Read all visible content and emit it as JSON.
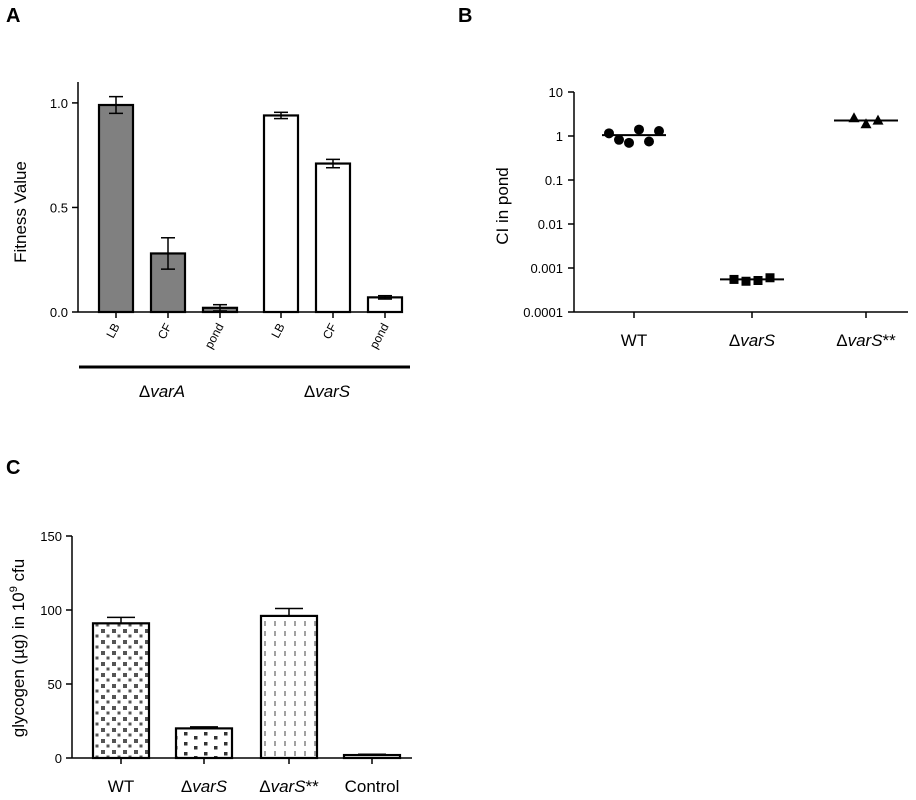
{
  "chart_data": [
    {
      "panel": "A",
      "type": "bar",
      "ylabel": "Fitness Value",
      "ylim": [
        0,
        1.1
      ],
      "yticks": [
        0.0,
        0.5,
        1.0
      ],
      "ytick_labels": [
        "0.0",
        "0.5",
        "1.0"
      ],
      "groups": [
        {
          "label_prefix": "Δ",
          "label_italic": "varA",
          "fill": "#808080",
          "categories": [
            "LB",
            "CF",
            "pond"
          ],
          "values": [
            0.99,
            0.28,
            0.02
          ],
          "errors": [
            0.04,
            0.075,
            0.015
          ]
        },
        {
          "label_prefix": "Δ",
          "label_italic": "varS",
          "fill": "#ffffff",
          "categories": [
            "LB",
            "CF",
            "pond"
          ],
          "values": [
            0.94,
            0.71,
            0.07
          ],
          "errors": [
            0.015,
            0.02,
            0.008
          ]
        }
      ]
    },
    {
      "panel": "B",
      "type": "scatter",
      "ylabel": "CI in pond",
      "yscale": "log",
      "ylim": [
        0.0001,
        10
      ],
      "ytick_labels": [
        "10",
        "1",
        "0.1",
        "0.01",
        "0.001",
        "0.0001"
      ],
      "ytick_values": [
        10,
        1,
        0.1,
        0.01,
        0.001,
        0.0001
      ],
      "categories": [
        {
          "prefix": "",
          "italic": "",
          "suffix": "WT"
        },
        {
          "prefix": "Δ",
          "italic": "varS",
          "suffix": ""
        },
        {
          "prefix": "Δ",
          "italic": "varS",
          "suffix": "**"
        }
      ],
      "series": [
        {
          "marker": "circle",
          "points": [
            1.15,
            0.82,
            0.7,
            1.4,
            0.75,
            1.3
          ],
          "median": 1.05
        },
        {
          "marker": "square",
          "points": [
            0.00055,
            0.0005,
            0.00052,
            0.0006
          ],
          "median": 0.00055
        },
        {
          "marker": "triangle",
          "points": [
            2.6,
            1.9,
            2.3
          ],
          "median": 2.25
        }
      ]
    },
    {
      "panel": "C",
      "type": "bar",
      "ylabel_pre": "glycogen (µg) in 10",
      "ylabel_sup": "9",
      "ylabel_post": " cfu",
      "ylim": [
        0,
        150
      ],
      "yticks": [
        0,
        50,
        100,
        150
      ],
      "ytick_labels": [
        "0",
        "50",
        "100",
        "150"
      ],
      "categories": [
        {
          "prefix": "",
          "italic": "",
          "suffix": "WT"
        },
        {
          "prefix": "Δ",
          "italic": "varS",
          "suffix": ""
        },
        {
          "prefix": "Δ",
          "italic": "varS",
          "suffix": "**"
        },
        {
          "prefix": "",
          "italic": "",
          "suffix": "Control"
        }
      ],
      "values": [
        91,
        20,
        96,
        2
      ],
      "errors": [
        4,
        1,
        5,
        0.5
      ],
      "patterns": [
        "dense-dots",
        "sparse-dots",
        "dashes",
        "none"
      ]
    }
  ],
  "panel_labels": [
    "A",
    "B",
    "C"
  ]
}
